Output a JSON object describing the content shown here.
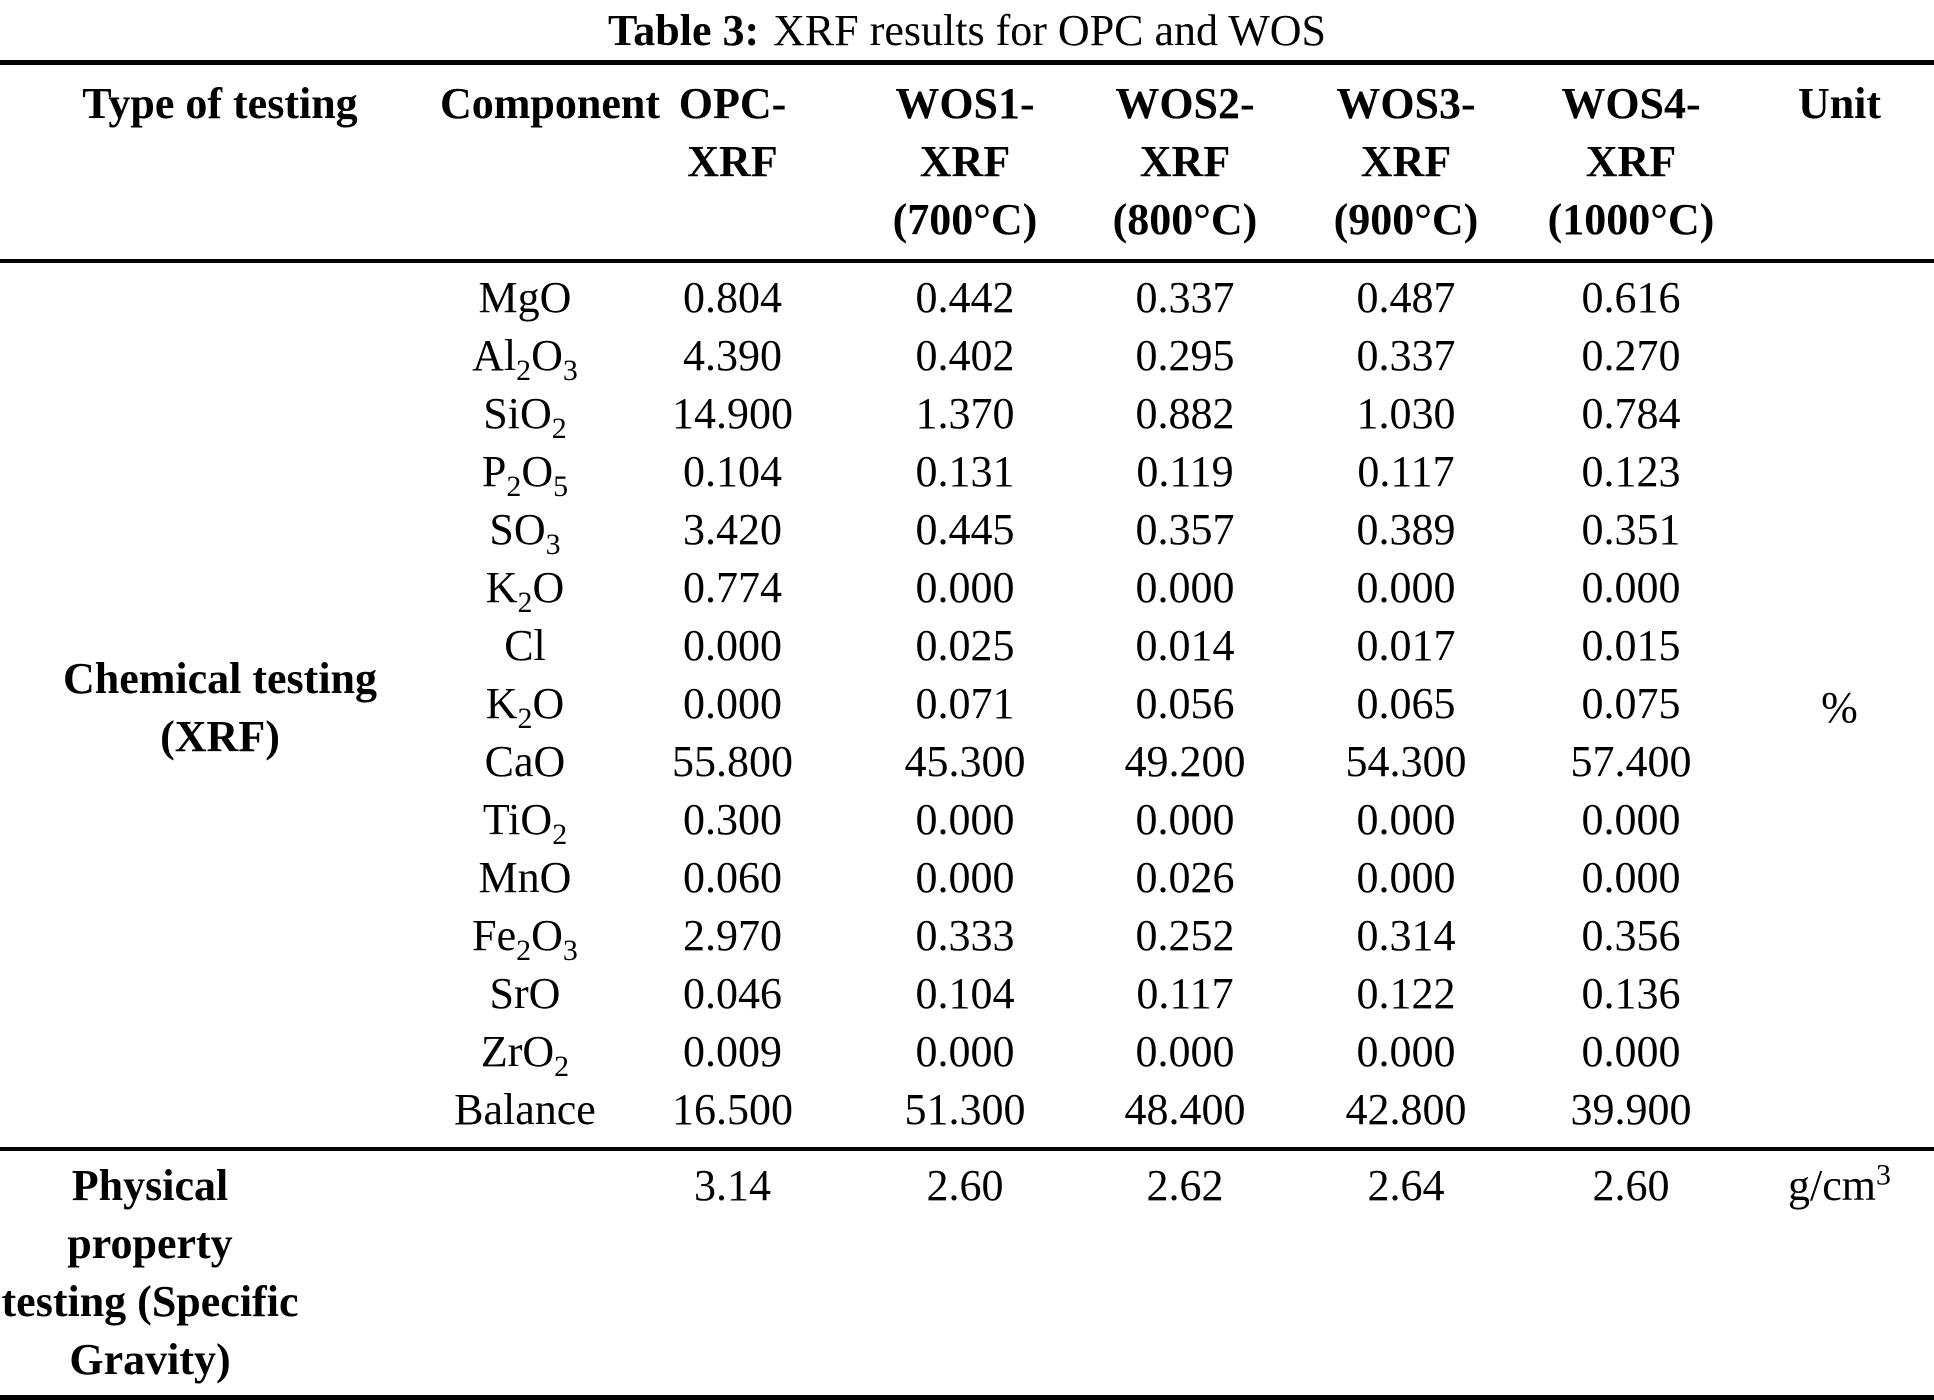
{
  "title": {
    "label": "Table 3:",
    "text": "XRF results for OPC and WOS"
  },
  "header": {
    "type_of_testing": "Type of testing",
    "component": "Component",
    "sample_columns": [
      [
        "OPC-",
        "XRF"
      ],
      [
        "WOS1-",
        "XRF",
        "(700°C)"
      ],
      [
        "WOS2-",
        "XRF",
        "(800°C)"
      ],
      [
        "WOS3-",
        "XRF",
        "(900°C)"
      ],
      [
        "WOS4-",
        "XRF",
        "(1000°C)"
      ]
    ],
    "unit": "Unit"
  },
  "chemical": {
    "row_label": "Chemical testing (XRF)",
    "unit": "%",
    "rows": [
      {
        "component": "MgO",
        "values": [
          "0.804",
          "0.442",
          "0.337",
          "0.487",
          "0.616"
        ]
      },
      {
        "component": "Al_2O_3",
        "values": [
          "4.390",
          "0.402",
          "0.295",
          "0.337",
          "0.270"
        ]
      },
      {
        "component": "SiO_2",
        "values": [
          "14.900",
          "1.370",
          "0.882",
          "1.030",
          "0.784"
        ]
      },
      {
        "component": "P_2O_5",
        "values": [
          "0.104",
          "0.131",
          "0.119",
          "0.117",
          "0.123"
        ]
      },
      {
        "component": "SO_3",
        "values": [
          "3.420",
          "0.445",
          "0.357",
          "0.389",
          "0.351"
        ]
      },
      {
        "component": "K_2O",
        "values": [
          "0.774",
          "0.000",
          "0.000",
          "0.000",
          "0.000"
        ]
      },
      {
        "component": "Cl",
        "values": [
          "0.000",
          "0.025",
          "0.014",
          "0.017",
          "0.015"
        ]
      },
      {
        "component": "K_2O",
        "values": [
          "0.000",
          "0.071",
          "0.056",
          "0.065",
          "0.075"
        ]
      },
      {
        "component": "CaO",
        "values": [
          "55.800",
          "45.300",
          "49.200",
          "54.300",
          "57.400"
        ]
      },
      {
        "component": "TiO_2",
        "values": [
          "0.300",
          "0.000",
          "0.000",
          "0.000",
          "0.000"
        ]
      },
      {
        "component": "MnO",
        "values": [
          "0.060",
          "0.000",
          "0.026",
          "0.000",
          "0.000"
        ]
      },
      {
        "component": "Fe_2O_3",
        "values": [
          "2.970",
          "0.333",
          "0.252",
          "0.314",
          "0.356"
        ]
      },
      {
        "component": "SrO",
        "values": [
          "0.046",
          "0.104",
          "0.117",
          "0.122",
          "0.136"
        ]
      },
      {
        "component": "ZrO_2",
        "values": [
          "0.009",
          "0.000",
          "0.000",
          "0.000",
          "0.000"
        ]
      },
      {
        "component": "Balance",
        "values": [
          "16.500",
          "51.300",
          "48.400",
          "42.800",
          "39.900"
        ]
      }
    ]
  },
  "physical": {
    "row_label_lines": [
      "Physical property",
      "testing (Specific",
      "Gravity)"
    ],
    "values": [
      "3.14",
      "2.60",
      "2.62",
      "2.64",
      "2.60"
    ],
    "unit": "g/cm^3"
  }
}
